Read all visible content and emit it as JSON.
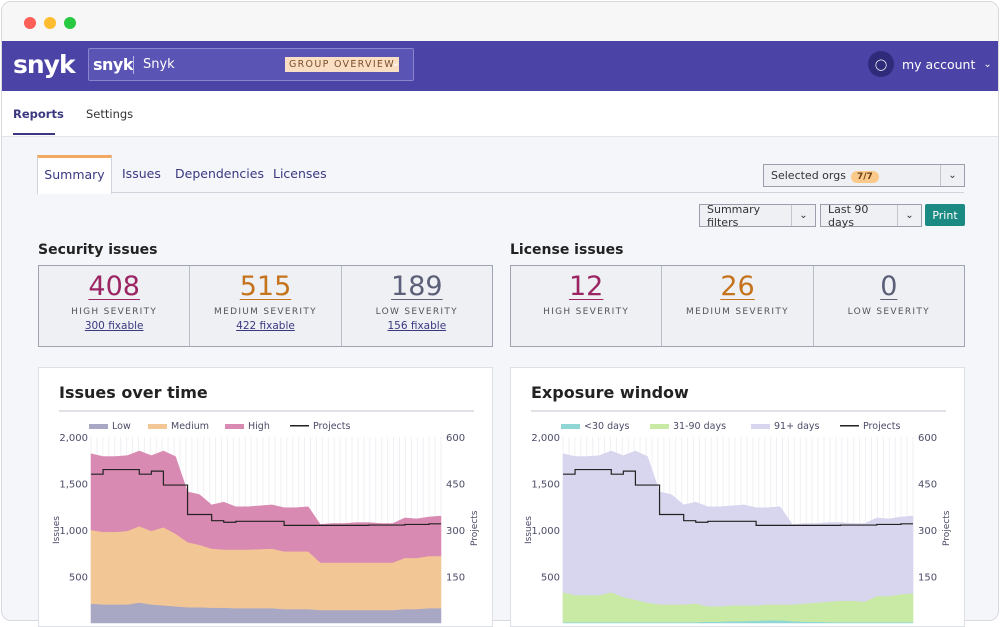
{
  "window": {
    "dots": [
      "#fe5f57",
      "#febc2e",
      "#28c840"
    ]
  },
  "header": {
    "logo": "snyk",
    "group_logo": "snyk",
    "group_name": "Snyk",
    "group_badge": "GROUP OVERVIEW",
    "account": "my account"
  },
  "subnav": {
    "items": [
      "Reports",
      "Settings"
    ],
    "active": "Reports"
  },
  "tabs": [
    "Summary",
    "Issues",
    "Dependencies",
    "Licenses"
  ],
  "controls": {
    "selected_orgs": "Selected orgs",
    "orgs_count": "7/7",
    "summary_filters": "Summary filters",
    "period": "Last 90 days",
    "print": "Print"
  },
  "security": {
    "title": "Security issues",
    "cells": [
      {
        "value": "408",
        "label": "HIGH SEVERITY",
        "fixable": "300 fixable",
        "color": "#9b2463"
      },
      {
        "value": "515",
        "label": "MEDIUM SEVERITY",
        "fixable": "422 fixable",
        "color": "#c5731c"
      },
      {
        "value": "189",
        "label": "LOW SEVERITY",
        "fixable": "156 fixable",
        "color": "#5b5f78"
      }
    ]
  },
  "license": {
    "title": "License issues",
    "cells": [
      {
        "value": "12",
        "label": "HIGH SEVERITY",
        "color": "#9b2463"
      },
      {
        "value": "26",
        "label": "MEDIUM SEVERITY",
        "color": "#c5731c"
      },
      {
        "value": "0",
        "label": "LOW SEVERITY",
        "color": "#5b5f78"
      }
    ]
  },
  "chart_data": [
    {
      "type": "area",
      "title": "Issues over time",
      "ylabel": "Issues",
      "y2label": "Projects",
      "ylim": [
        0,
        2000
      ],
      "y2lim": [
        0,
        600
      ],
      "yticks": [
        "2,000",
        "1,500",
        "1,000",
        "500"
      ],
      "y2ticks": [
        "600",
        "450",
        "300",
        "150"
      ],
      "stacked": true,
      "grid": true,
      "legend": "top",
      "series": [
        {
          "name": "Low",
          "color": "#a9a8c4",
          "values": [
            210,
            200,
            200,
            200,
            220,
            200,
            190,
            180,
            170,
            170,
            165,
            165,
            160,
            160,
            160,
            160,
            150,
            150,
            150,
            140,
            140,
            140,
            140,
            140,
            140,
            140,
            150,
            150,
            160,
            160
          ]
        },
        {
          "name": "Medium",
          "color": "#f3c795",
          "values": [
            790,
            780,
            780,
            790,
            820,
            790,
            840,
            780,
            700,
            670,
            635,
            625,
            630,
            630,
            635,
            640,
            620,
            620,
            620,
            510,
            510,
            510,
            510,
            510,
            510,
            510,
            550,
            550,
            560,
            560
          ]
        },
        {
          "name": "High",
          "color": "#d98ab2",
          "values": [
            820,
            810,
            810,
            810,
            810,
            810,
            820,
            830,
            540,
            540,
            470,
            510,
            460,
            460,
            465,
            470,
            470,
            470,
            480,
            410,
            420,
            420,
            430,
            430,
            420,
            420,
            430,
            420,
            420,
            430
          ]
        }
      ],
      "line": {
        "name": "Projects",
        "color": "#222222",
        "values": [
          480,
          495,
          495,
          495,
          480,
          490,
          445,
          445,
          350,
          350,
          330,
          325,
          328,
          328,
          328,
          328,
          315,
          315,
          315,
          315,
          315,
          315,
          315,
          316,
          316,
          316,
          318,
          318,
          320,
          320
        ]
      }
    },
    {
      "type": "area",
      "title": "Exposure window",
      "ylabel": "Issues",
      "y2label": "Projects",
      "ylim": [
        0,
        2000
      ],
      "y2lim": [
        0,
        600
      ],
      "yticks": [
        "2,000",
        "1,500",
        "1,000",
        "500"
      ],
      "y2ticks": [
        "600",
        "450",
        "300",
        "150"
      ],
      "stacked": true,
      "grid": true,
      "legend": "top",
      "series": [
        {
          "name": "<30 days",
          "color": "#8fd6d4",
          "values": [
            10,
            10,
            10,
            10,
            10,
            10,
            10,
            10,
            10,
            10,
            10,
            10,
            15,
            15,
            20,
            20,
            25,
            30,
            30,
            20,
            15,
            15,
            10,
            10,
            10,
            10,
            10,
            10,
            10,
            10
          ]
        },
        {
          "name": "31-90 days",
          "color": "#c9eaa4",
          "values": [
            320,
            290,
            290,
            290,
            320,
            270,
            240,
            210,
            190,
            190,
            190,
            200,
            165,
            165,
            170,
            170,
            165,
            170,
            170,
            180,
            195,
            205,
            220,
            230,
            230,
            220,
            280,
            280,
            300,
            310
          ]
        },
        {
          "name": "91+ days",
          "color": "#d8d6ee",
          "values": [
            1490,
            1490,
            1490,
            1500,
            1520,
            1520,
            1600,
            1570,
            1210,
            1180,
            1070,
            1090,
            1070,
            1070,
            1070,
            1080,
            1050,
            1040,
            1050,
            860,
            860,
            850,
            850,
            840,
            830,
            840,
            840,
            830,
            830,
            830
          ]
        }
      ],
      "line": {
        "name": "Projects",
        "color": "#222222",
        "values": [
          480,
          495,
          495,
          495,
          480,
          490,
          445,
          445,
          350,
          350,
          330,
          325,
          328,
          328,
          328,
          328,
          315,
          315,
          315,
          315,
          315,
          315,
          315,
          316,
          316,
          316,
          318,
          318,
          320,
          320
        ]
      }
    }
  ]
}
